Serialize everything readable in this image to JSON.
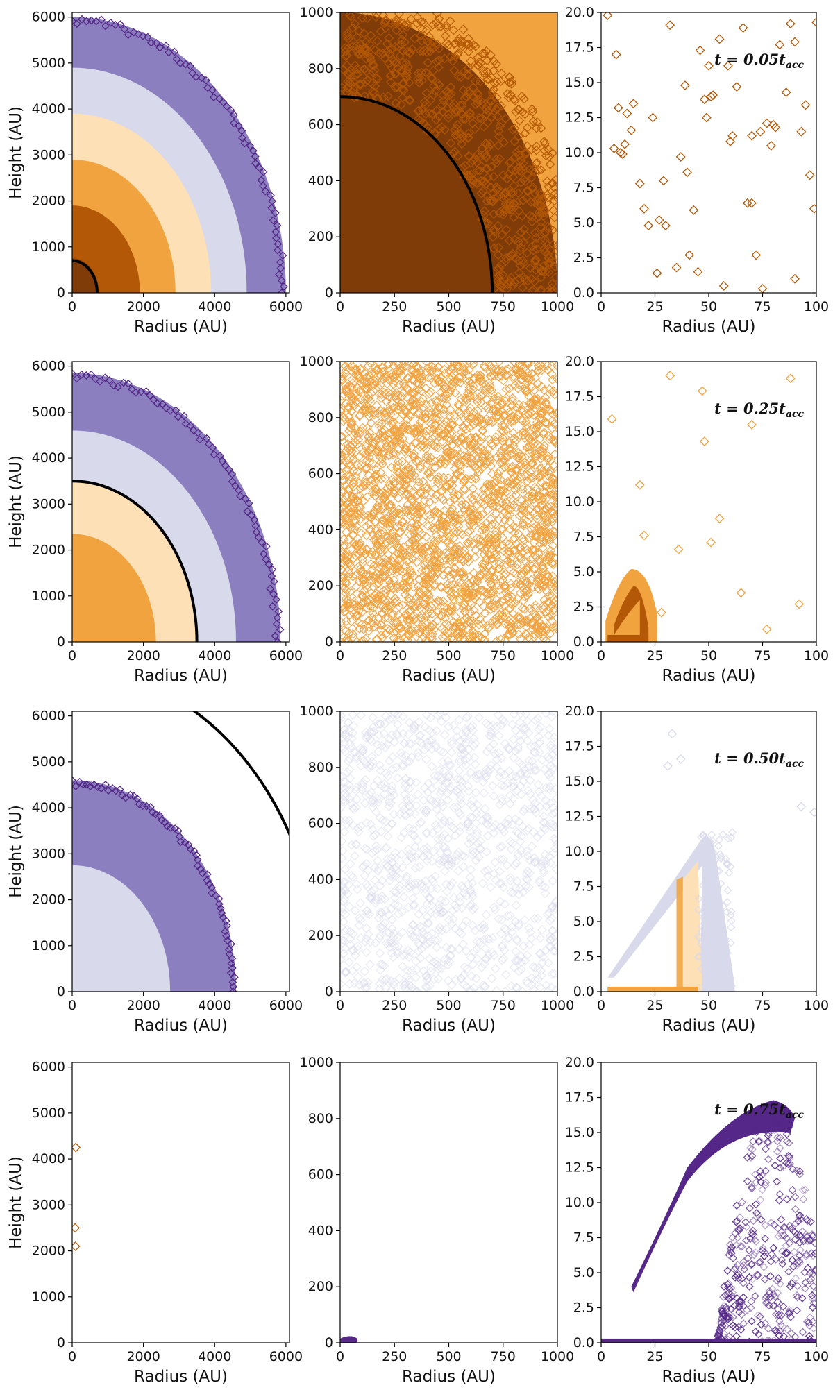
{
  "figure": {
    "description_free": true,
    "xlabel": "Radius (AU)",
    "ylabel": "Height (AU)"
  },
  "colors": {
    "c0": "#7f3b08",
    "c1": "#b35806",
    "c2": "#f1a340",
    "c3": "#fee0b6",
    "c4": "#d8daeb",
    "c5": "#8c7fbf",
    "c6": "#542788"
  },
  "chart_data": [
    {
      "id": "p00",
      "type": "scatter",
      "row": 0,
      "col": 0,
      "xlabel": "Radius (AU)",
      "ylabel": "Height (AU)",
      "xlim": [
        0,
        6100
      ],
      "ylim": [
        0,
        6100
      ],
      "xticks": [
        0,
        2000,
        4000,
        6000
      ],
      "yticks": [
        0,
        1000,
        2000,
        3000,
        4000,
        5000,
        6000
      ],
      "shells": [
        {
          "r": 6000,
          "color": "c6",
          "color2": "c5",
          "edge": true
        },
        {
          "r": 4900,
          "color": "c4"
        },
        {
          "r": 3900,
          "color": "c3"
        },
        {
          "r": 2900,
          "color": "c2"
        },
        {
          "r": 1900,
          "color": "c1"
        },
        {
          "r": 750,
          "color": "c0"
        }
      ],
      "circle_radius": 700
    },
    {
      "id": "p01",
      "type": "scatter",
      "row": 0,
      "col": 1,
      "xlabel": "Radius (AU)",
      "ylabel": "",
      "xlim": [
        0,
        1000
      ],
      "ylim": [
        0,
        1000
      ],
      "xticks": [
        0,
        250,
        500,
        750,
        1000
      ],
      "yticks": [
        0,
        200,
        400,
        600,
        800,
        1000
      ],
      "background": "c2",
      "fill_region": {
        "r": 1000,
        "color": "c0"
      },
      "cloud": {
        "color": "c1",
        "count": 1400,
        "rmin": 700,
        "rmax": 1100
      },
      "circle_radius": 700
    },
    {
      "id": "p02",
      "type": "scatter",
      "row": 0,
      "col": 2,
      "xlabel": "Radius (AU)",
      "ylabel": "",
      "xlim": [
        0,
        100
      ],
      "ylim": [
        0,
        20
      ],
      "xticks": [
        0,
        25,
        50,
        75,
        100
      ],
      "yticks": [
        0.0,
        2.5,
        5.0,
        7.5,
        10.0,
        12.5,
        15.0,
        17.5,
        20.0
      ],
      "annotation": "t = 0.05t_acc",
      "points_color": "c1",
      "x": [
        3,
        7,
        8,
        9,
        11,
        12,
        15,
        18,
        22,
        24,
        26,
        27,
        29,
        32,
        35,
        37,
        39,
        41,
        43,
        45,
        46,
        48,
        49,
        51,
        52,
        55,
        57,
        59,
        61,
        63,
        66,
        68,
        70,
        72,
        74,
        75,
        77,
        79,
        81,
        83,
        86,
        88,
        90,
        93,
        95,
        97,
        99,
        100,
        6,
        10,
        14,
        20,
        30,
        40,
        50,
        60,
        70,
        80,
        90
      ],
      "y": [
        19.8,
        17.0,
        13.2,
        10.0,
        10.6,
        12.8,
        13.5,
        7.8,
        4.8,
        12.5,
        1.4,
        5.2,
        8.0,
        19.1,
        1.8,
        9.7,
        14.8,
        2.7,
        5.9,
        1.5,
        17.3,
        13.8,
        12.5,
        14.0,
        14.1,
        18.1,
        0.5,
        16.2,
        11.2,
        14.7,
        18.9,
        6.4,
        11.2,
        2.7,
        11.5,
        0.3,
        12.1,
        10.5,
        11.8,
        17.7,
        14.3,
        19.2,
        1.0,
        11.5,
        13.4,
        8.4,
        6.0,
        19.3,
        10.3,
        9.9,
        11.6,
        6.0,
        4.8,
        8.6,
        16.2,
        10.8,
        6.4,
        12.0,
        17.9
      ]
    },
    {
      "id": "p10",
      "type": "scatter",
      "row": 1,
      "col": 0,
      "xlabel": "Radius (AU)",
      "ylabel": "Height (AU)",
      "xlim": [
        0,
        6100
      ],
      "ylim": [
        0,
        6100
      ],
      "xticks": [
        0,
        2000,
        4000,
        6000
      ],
      "yticks": [
        0,
        1000,
        2000,
        3000,
        4000,
        5000,
        6000
      ],
      "shells": [
        {
          "r": 5850,
          "color": "c6",
          "color2": "c5",
          "edge": true
        },
        {
          "r": 4600,
          "color": "c4"
        },
        {
          "r": 3500,
          "color": "c3"
        },
        {
          "r": 2350,
          "color": "c2"
        }
      ],
      "circle_radius": 3500
    },
    {
      "id": "p11",
      "type": "scatter",
      "row": 1,
      "col": 1,
      "xlabel": "Radius (AU)",
      "ylabel": "",
      "xlim": [
        0,
        1000
      ],
      "ylim": [
        0,
        1000
      ],
      "xticks": [
        0,
        250,
        500,
        750,
        1000
      ],
      "yticks": [
        0,
        200,
        400,
        600,
        800,
        1000
      ],
      "cloud": {
        "color": "c2",
        "count": 2600,
        "rmin": 0,
        "rmax": 1500
      }
    },
    {
      "id": "p12",
      "type": "scatter",
      "row": 1,
      "col": 2,
      "xlabel": "Radius (AU)",
      "ylabel": "",
      "xlim": [
        0,
        100
      ],
      "ylim": [
        0,
        20
      ],
      "xticks": [
        0,
        25,
        50,
        75,
        100
      ],
      "yticks": [
        0.0,
        2.5,
        5.0,
        7.5,
        10.0,
        12.5,
        15.0,
        17.5,
        20.0
      ],
      "annotation": "t = 0.25t_acc",
      "points_color": "c2",
      "x": [
        5,
        32,
        47,
        48,
        51,
        55,
        65,
        70,
        77,
        88,
        92,
        36,
        28,
        20,
        18
      ],
      "y": [
        15.9,
        19.0,
        17.9,
        14.3,
        7.1,
        8.8,
        3.5,
        15.5,
        0.9,
        18.8,
        2.7,
        6.6,
        2.1,
        7.6,
        11.2
      ],
      "blob": {
        "color": "c2",
        "inner": "c1",
        "x0": 2,
        "x1": 26,
        "ytop": 5.2
      }
    },
    {
      "id": "p20",
      "type": "scatter",
      "row": 2,
      "col": 0,
      "xlabel": "Radius (AU)",
      "ylabel": "Height (AU)",
      "xlim": [
        0,
        6100
      ],
      "ylim": [
        0,
        6100
      ],
      "xticks": [
        0,
        2000,
        4000,
        6000
      ],
      "yticks": [
        0,
        1000,
        2000,
        3000,
        4000,
        5000,
        6000
      ],
      "shells": [
        {
          "r": 4600,
          "color": "c6",
          "color2": "c5",
          "edge": true
        },
        {
          "r": 2750,
          "color": "c4"
        }
      ],
      "circle_radius": 7000
    },
    {
      "id": "p21",
      "type": "scatter",
      "row": 2,
      "col": 1,
      "xlabel": "Radius (AU)",
      "ylabel": "",
      "xlim": [
        0,
        1000
      ],
      "ylim": [
        0,
        1000
      ],
      "xticks": [
        0,
        250,
        500,
        750,
        1000
      ],
      "yticks": [
        0,
        200,
        400,
        600,
        800,
        1000
      ],
      "cloud": {
        "color": "c4",
        "count": 1200,
        "rmin": 0,
        "rmax": 1500,
        "sparse": true
      }
    },
    {
      "id": "p22",
      "type": "scatter",
      "row": 2,
      "col": 2,
      "xlabel": "Radius (AU)",
      "ylabel": "",
      "xlim": [
        0,
        100
      ],
      "ylim": [
        0,
        20
      ],
      "xticks": [
        0,
        25,
        50,
        75,
        100
      ],
      "yticks": [
        0.0,
        2.5,
        5.0,
        7.5,
        10.0,
        12.5,
        15.0,
        17.5,
        20.0
      ],
      "annotation": "t = 0.50t_acc",
      "points_color": "c4",
      "x": [
        31,
        33,
        37,
        93,
        99
      ],
      "y": [
        16.1,
        18.4,
        16.6,
        13.2,
        12.8
      ],
      "arch": {
        "color": "c4",
        "x0": 3,
        "xpeak": 50,
        "ypeak": 11.2,
        "x1": 62,
        "inner": "c3",
        "orange": "c2"
      }
    },
    {
      "id": "p30",
      "type": "scatter",
      "row": 3,
      "col": 0,
      "xlabel": "Radius (AU)",
      "ylabel": "Height (AU)",
      "xlim": [
        0,
        6100
      ],
      "ylim": [
        0,
        6100
      ],
      "xticks": [
        0,
        2000,
        4000,
        6000
      ],
      "yticks": [
        0,
        1000,
        2000,
        3000,
        4000,
        5000,
        6000
      ],
      "points_color": "c1",
      "x": [
        100,
        80,
        90
      ],
      "y": [
        4250,
        2500,
        2100
      ]
    },
    {
      "id": "p31",
      "type": "scatter",
      "row": 3,
      "col": 1,
      "xlabel": "Radius (AU)",
      "ylabel": "",
      "xlim": [
        0,
        1000
      ],
      "ylim": [
        0,
        1000
      ],
      "xticks": [
        0,
        250,
        500,
        750,
        1000
      ],
      "yticks": [
        0,
        200,
        400,
        600,
        800,
        1000
      ],
      "blob_small": {
        "color": "c6",
        "r": 80,
        "h": 25
      }
    },
    {
      "id": "p32",
      "type": "scatter",
      "row": 3,
      "col": 2,
      "xlabel": "Radius (AU)",
      "ylabel": "",
      "xlim": [
        0,
        100
      ],
      "ylim": [
        0,
        20
      ],
      "xticks": [
        0,
        25,
        50,
        75,
        100
      ],
      "yticks": [
        0.0,
        2.5,
        5.0,
        7.5,
        10.0,
        12.5,
        15.0,
        17.5,
        20.0
      ],
      "annotation": "t = 0.75t_acc",
      "arch2": {
        "color": "c6",
        "x0": 14,
        "xpeak": 80,
        "ypeak": 17.2,
        "x1": 100
      }
    }
  ]
}
